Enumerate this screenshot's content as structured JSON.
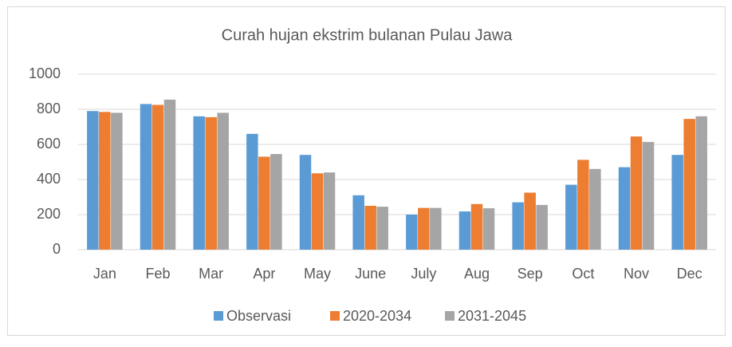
{
  "chart_data": {
    "type": "bar",
    "title": "Curah hujan ekstrim bulanan Pulau Jawa",
    "categories": [
      "Jan",
      "Feb",
      "Mar",
      "Apr",
      "May",
      "June",
      "July",
      "Aug",
      "Sep",
      "Oct",
      "Nov",
      "Dec"
    ],
    "series": [
      {
        "name": "Observasi",
        "color": "#5b9bd5",
        "values": [
          790,
          830,
          760,
          660,
          540,
          310,
          200,
          218,
          270,
          370,
          470,
          540
        ]
      },
      {
        "name": "2020-2034",
        "color": "#ed7d31",
        "values": [
          785,
          825,
          755,
          530,
          435,
          250,
          238,
          260,
          325,
          512,
          645,
          745
        ]
      },
      {
        "name": "2031-2045",
        "color": "#a5a5a5",
        "values": [
          780,
          855,
          780,
          545,
          440,
          245,
          238,
          236,
          255,
          460,
          614,
          760
        ]
      }
    ],
    "ylim": [
      0,
      1000
    ],
    "yticks": [
      0,
      200,
      400,
      600,
      800,
      1000
    ],
    "grid": true,
    "legend": "bottom"
  }
}
